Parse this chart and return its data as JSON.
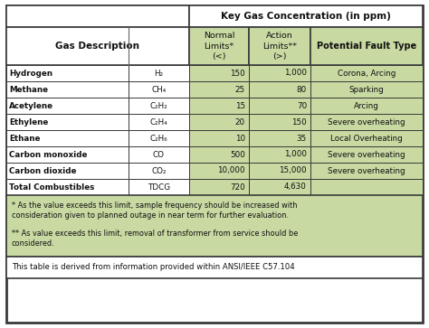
{
  "title_header": "Key Gas Concentration (in ppm)",
  "rows": [
    [
      "Hydrogen",
      "H₂",
      "150",
      "1,000",
      "Corona, Arcing"
    ],
    [
      "Methane",
      "CH₄",
      "25",
      "80",
      "Sparking"
    ],
    [
      "Acetylene",
      "C₂H₂",
      "15",
      "70",
      "Arcing"
    ],
    [
      "Ethylene",
      "C₂H₄",
      "20",
      "150",
      "Severe overheating"
    ],
    [
      "Ethane",
      "C₂H₆",
      "10",
      "35",
      "Local Overheating"
    ],
    [
      "Carbon monoxide",
      "CO",
      "500",
      "1,000",
      "Severe overheating"
    ],
    [
      "Carbon dioxide",
      "CO₂",
      "10,000",
      "15,000",
      "Severe overheating"
    ],
    [
      "Total Combustibles",
      "TDCG",
      "720",
      "4,630",
      ""
    ]
  ],
  "footnote1": "* As the value exceeds this limit, sample frequency should be increased with\nconsideration given to planned outage in near term for further evaluation.",
  "footnote2": "** As value exceeds this limit, removal of transformer from service should be\nconsidered.",
  "footnote3": "This table is derived from information provided within ANSI/IEEE C57.104",
  "white": "#ffffff",
  "green_bg": "#c8d9a2",
  "border_dark": "#3a3a3a",
  "border_mid": "#666666",
  "text_dark": "#111111"
}
